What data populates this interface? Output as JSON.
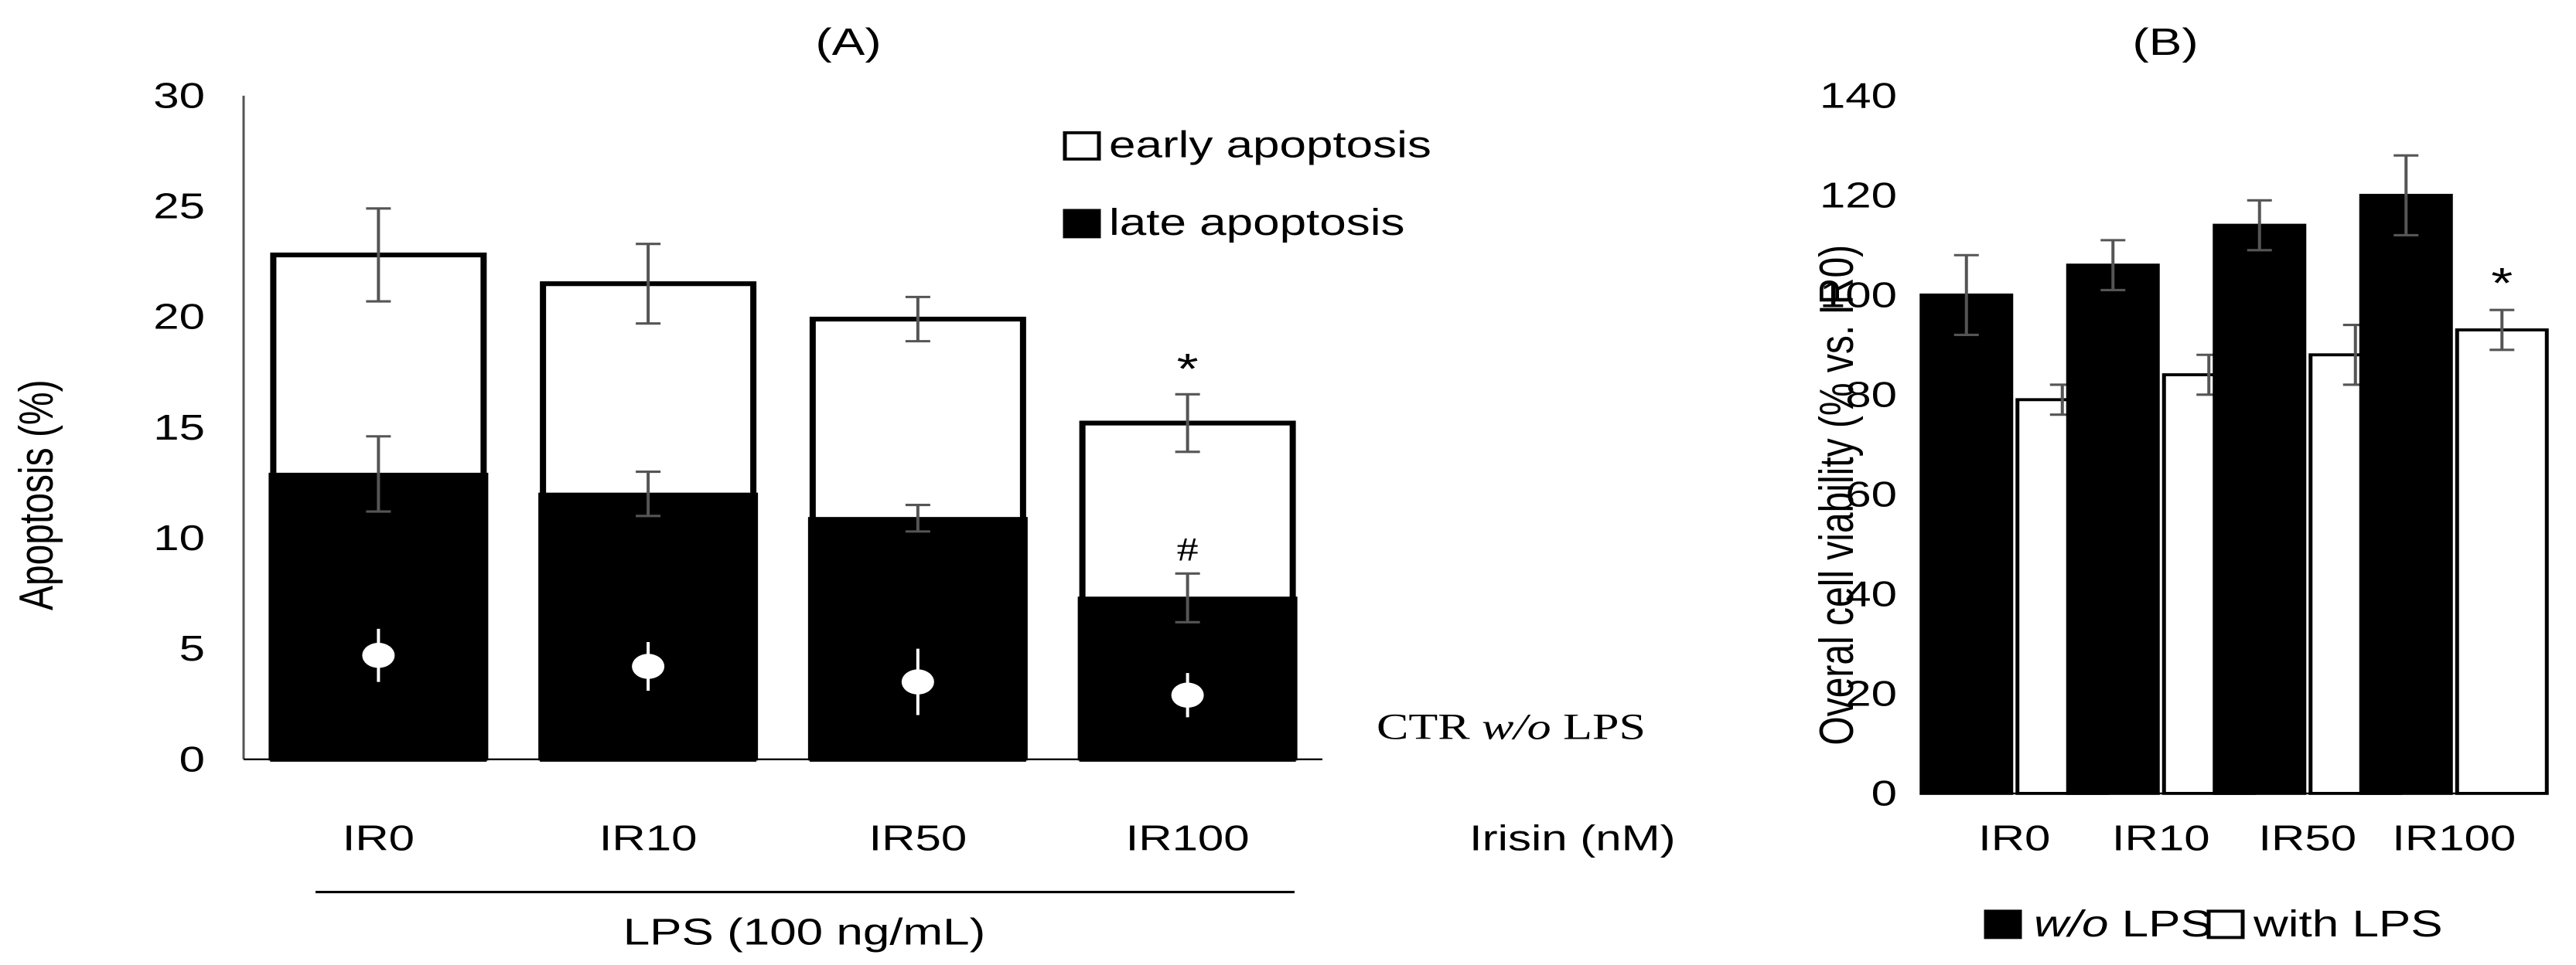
{
  "chart_data": [
    {
      "panel": "(A)",
      "type": "bar",
      "stacked": true,
      "title": "(A)",
      "ylabel": "Apoptosis (%)",
      "ylim": [
        0,
        30
      ],
      "yticks": [
        0,
        5,
        10,
        15,
        20,
        25,
        30
      ],
      "categories": [
        "IR0",
        "IR10",
        "IR50",
        "IR100"
      ],
      "x_suffix_label": "Irisin (nM)",
      "group_label": "LPS (100 ng/mL)",
      "series": [
        {
          "name": "late apoptosis",
          "color": "#000000",
          "values": [
            12.9,
            12.0,
            10.9,
            7.3
          ],
          "errors": [
            1.7,
            1.0,
            0.6,
            1.1
          ]
        },
        {
          "name": "early apoptosis",
          "color": "#ffffff",
          "totals": [
            22.8,
            21.5,
            19.9,
            15.2
          ],
          "errors": [
            2.1,
            1.8,
            1.0,
            1.3
          ]
        }
      ],
      "ctr_series": {
        "name": "CTR w/o LPS",
        "name_prefix": "CTR",
        "name_italic": "w/o",
        "name_suffix": "LPS",
        "color": "#ffffff",
        "values": [
          4.7,
          4.2,
          3.5,
          2.9
        ],
        "errors": [
          1.2,
          1.1,
          1.5,
          1.0
        ]
      },
      "annotations": [
        {
          "text": "*",
          "category": "IR100",
          "anchor": "total"
        },
        {
          "text": "#",
          "category": "IR100",
          "anchor": "late"
        }
      ],
      "legend": [
        "early apoptosis",
        "late apoptosis"
      ],
      "legend_position": "top-right"
    },
    {
      "panel": "(B)",
      "type": "bar",
      "title": "(B)",
      "ylabel": "Overal cell viability (% vs. IR0)",
      "ylim": [
        0,
        140
      ],
      "yticks": [
        0,
        20,
        40,
        60,
        80,
        100,
        120,
        140
      ],
      "categories": [
        "IR0",
        "IR10",
        "IR50",
        "IR100"
      ],
      "series": [
        {
          "name": "w/o LPS",
          "name_italic": "w/o",
          "name_suffix": "LPS",
          "color": "#000000",
          "values": [
            100,
            106,
            114,
            120
          ],
          "errors": [
            8,
            5,
            5,
            8
          ]
        },
        {
          "name": "with LPS",
          "color": "#ffffff",
          "values": [
            79,
            84,
            88,
            93
          ],
          "errors": [
            3,
            4,
            6,
            4
          ]
        }
      ],
      "annotations": [
        {
          "text": "*",
          "category": "IR100",
          "series": "with LPS"
        }
      ],
      "legend_position": "bottom"
    }
  ]
}
